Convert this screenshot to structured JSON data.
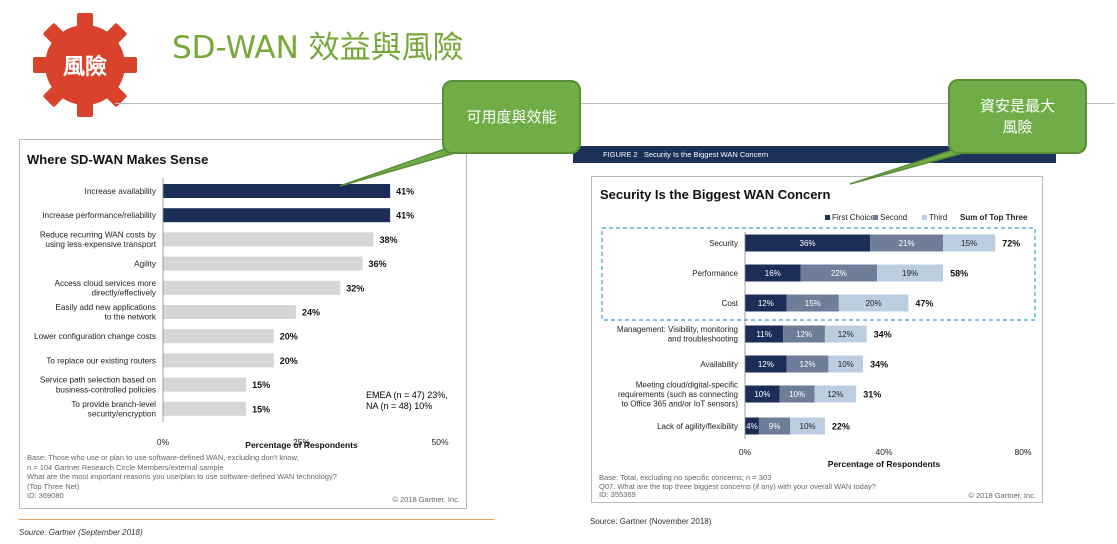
{
  "header": {
    "badge": "風險",
    "title": "SD-WAN 效益與風險",
    "callout_left": "可用度與效能",
    "callout_right": "資安是最大\n風險"
  },
  "colors": {
    "title_green": "#76a83a",
    "gear_red": "#d9432b",
    "navy": "#1c2e57",
    "gray_bar": "#d6d6d6",
    "second": "#6f7d98",
    "third": "#bccde0"
  },
  "left_chart": {
    "title": "Where SD-WAN Makes Sense",
    "xlabel": "Percentage of Respondents",
    "note": "EMEA (n = 47) 23%,\nNA (n = 48) 10%",
    "ticks": [
      "0%",
      "25%",
      "50%"
    ],
    "footer": [
      "Base: Those who use or plan to use software-defined WAN, excluding don't know;",
      "n = 104 Gartner Research Circle Members/external sample",
      "What are the most important reasons you use/plan to use software-defined WAN technology?",
      "(Top Three Net)",
      "ID: 369080"
    ],
    "copyright": "© 2018 Gartner, Inc.",
    "source": "Source: Gartner (September 2018)"
  },
  "right_chart": {
    "figure_label": "FIGURE 2   Security Is the Biggest WAN Concern",
    "title": "Security Is the Biggest WAN Concern",
    "legend": [
      "First Choice",
      "Second",
      "Third",
      "Sum of Top Three"
    ],
    "xlabel": "Percentage of Respondents",
    "ticks": [
      "0%",
      "40%",
      "80%"
    ],
    "footer": [
      "Base: Total, excluding no specific concerns; n = 303",
      "Q07. What are the top three biggest concerns (if any) with your overall WAN today?",
      "ID: 355369"
    ],
    "copyright": "© 2018 Gartner, Inc.",
    "source": "Source: Gartner (November 2018)"
  },
  "chart_data": [
    {
      "type": "bar",
      "orientation": "horizontal",
      "title": "Where SD-WAN Makes Sense",
      "xlabel": "Percentage of Respondents",
      "xlim": [
        0,
        50
      ],
      "categories": [
        "Increase availability",
        "Increase performance/reliability",
        "Reduce recurring WAN costs by\nusing less-expensive transport",
        "Agility",
        "Access cloud services more\ndirectly/effectively",
        "Easily add new applications\nto the network",
        "Lower configuration change costs",
        "To replace our existing routers",
        "Service path selection based on\nbusiness-controlled policies",
        "To provide branch-level\nsecurity/encryption"
      ],
      "values": [
        41,
        41,
        38,
        36,
        32,
        24,
        20,
        20,
        15,
        15
      ],
      "labels": [
        "41%",
        "41%",
        "38%",
        "36%",
        "32%",
        "24%",
        "20%",
        "20%",
        "15%",
        "15%"
      ],
      "highlight": [
        true,
        true,
        false,
        false,
        false,
        false,
        false,
        false,
        false,
        false
      ]
    },
    {
      "type": "bar",
      "orientation": "horizontal",
      "stacked": true,
      "title": "Security Is the Biggest WAN Concern",
      "xlabel": "Percentage of Respondents",
      "xlim": [
        0,
        80
      ],
      "categories": [
        "Security",
        "Performance",
        "Cost",
        "Management: Visibility, monitoring\nand troubleshooting",
        "Availability",
        "Meeting cloud/digital-specific\nrequirements (such as connecting\nto Office 365 and/or IoT sensors)",
        "Lack of agility/flexibility"
      ],
      "series": [
        {
          "name": "First Choice",
          "values": [
            36,
            16,
            12,
            11,
            12,
            10,
            4
          ]
        },
        {
          "name": "Second",
          "values": [
            21,
            22,
            15,
            12,
            12,
            10,
            9
          ]
        },
        {
          "name": "Third",
          "values": [
            15,
            19,
            20,
            12,
            10,
            12,
            10
          ]
        }
      ],
      "segment_labels": [
        [
          "36%",
          "21%",
          "15%"
        ],
        [
          "16%",
          "22%",
          "19%"
        ],
        [
          "12%",
          "15%",
          "20%"
        ],
        [
          "11%",
          "12%",
          "12%"
        ],
        [
          "12%",
          "12%",
          "10%"
        ],
        [
          "10%",
          "10%",
          "12%"
        ],
        [
          "4%",
          "9%",
          "10%"
        ]
      ],
      "totals": [
        "72%",
        "58%",
        "47%",
        "34%",
        "34%",
        "31%",
        "22%"
      ],
      "highlight_box": [
        "Security",
        "Performance",
        "Cost"
      ]
    }
  ]
}
